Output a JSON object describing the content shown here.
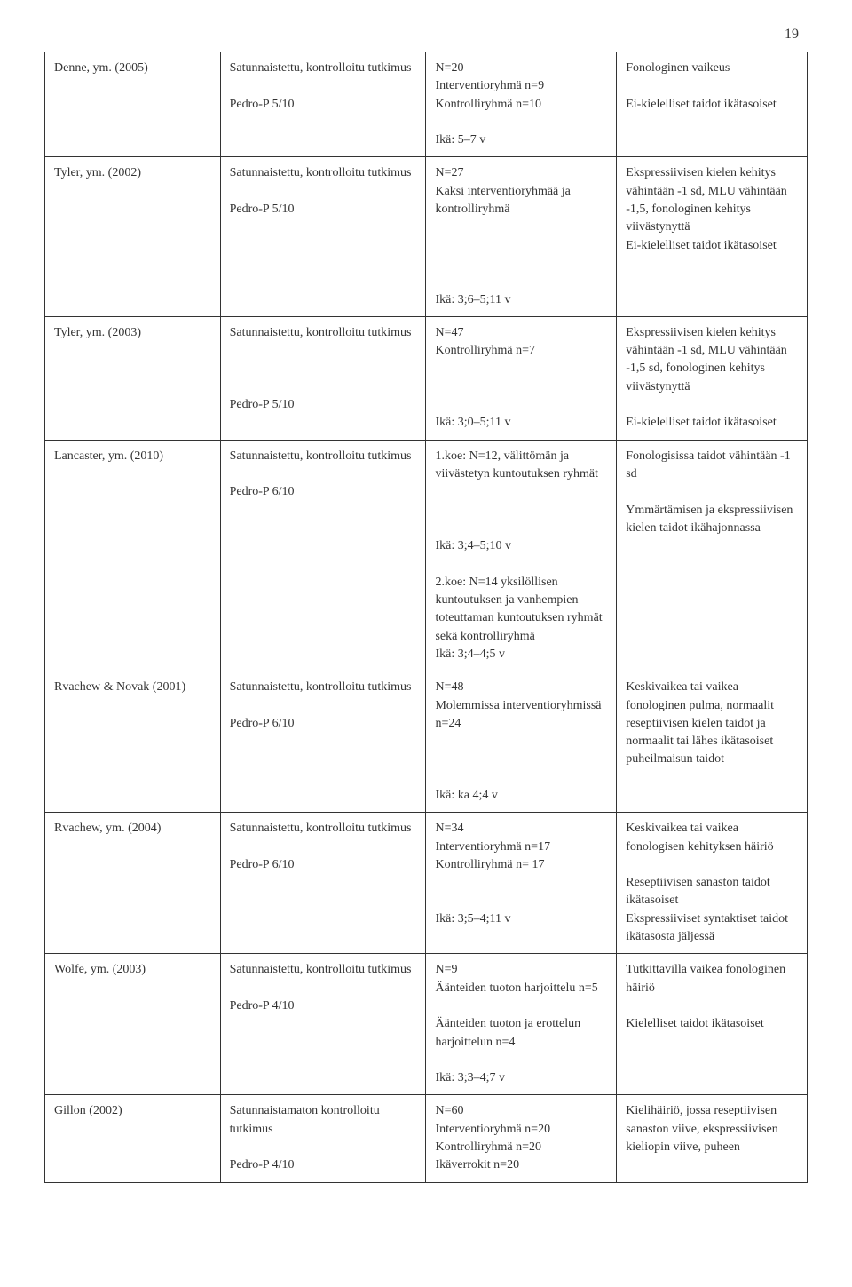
{
  "page_number": "19",
  "table": {
    "text_color": "#333333",
    "border_color": "#333333",
    "background_color": "#ffffff",
    "font_family": "Georgia serif",
    "font_size_pt": 11,
    "rows": [
      {
        "study": "Denne, ym. (2005)",
        "design": "Satunnaistettu, kontrolloitu tutkimus\n\nPedro-P 5/10",
        "sample": "N=20\nInterventioryhmä n=9\nKontrolliryhmä n=10\n\nIkä: 5–7 v",
        "criteria": "Fonologinen vaikeus\n\nEi-kielelliset taidot ikätasoiset"
      },
      {
        "study": "Tyler, ym. (2002)",
        "design": "Satunnaistettu, kontrolloitu tutkimus\n\nPedro-P 5/10",
        "sample": "N=27\nKaksi interventioryhmää ja kontrolliryhmä\n\n\n\n\nIkä: 3;6–5;11 v",
        "criteria": "Ekspressiivisen kielen kehitys vähintään -1 sd, MLU vähintään -1,5, fonologinen kehitys viivästynyttä\nEi-kielelliset taidot ikätasoiset"
      },
      {
        "study": "Tyler, ym. (2003)",
        "design": "Satunnaistettu, kontrolloitu tutkimus\n\n\n\nPedro-P 5/10",
        "sample": "N=47\nKontrolliryhmä n=7\n\n\n\nIkä: 3;0–5;11 v",
        "criteria": "Ekspressiivisen kielen kehitys vähintään -1 sd, MLU vähintään -1,5 sd, fonologinen kehitys viivästynyttä\n\nEi-kielelliset taidot ikätasoiset"
      },
      {
        "study": "Lancaster, ym. (2010)",
        "design": "Satunnaistettu, kontrolloitu tutkimus\n\nPedro-P 6/10",
        "sample": "1.koe: N=12, välittömän ja viivästetyn kuntoutuksen ryhmät\n\n\n\nIkä: 3;4–5;10 v\n\n2.koe: N=14 yksilöllisen kuntoutuksen ja vanhempien toteuttaman kuntoutuksen ryhmät sekä kontrolliryhmä\nIkä: 3;4–4;5 v",
        "criteria": "Fonologisissa taidot vähintään -1 sd\n\nYmmärtämisen ja ekspressiivisen kielen taidot ikähajonnassa"
      },
      {
        "study": "Rvachew & Novak (2001)",
        "design": "Satunnaistettu, kontrolloitu tutkimus\n\nPedro-P 6/10",
        "sample": "N=48\nMolemmissa interventioryhmissä n=24\n\n\n\nIkä: ka 4;4 v",
        "criteria": "Keskivaikea tai vaikea fonologinen pulma, normaalit reseptiivisen kielen taidot ja normaalit tai lähes ikätasoiset puheilmaisun taidot"
      },
      {
        "study": "Rvachew, ym. (2004)",
        "design": "Satunnaistettu, kontrolloitu tutkimus\n\nPedro-P 6/10",
        "sample": "N=34\nInterventioryhmä n=17\nKontrolliryhmä n= 17\n\n\nIkä: 3;5–4;11 v",
        "criteria": "Keskivaikea tai vaikea fonologisen kehityksen häiriö\n\nReseptiivisen sanaston taidot ikätasoiset\nEkspressiiviset syntaktiset taidot ikätasosta jäljessä"
      },
      {
        "study": "Wolfe, ym. (2003)",
        "design": "Satunnaistettu, kontrolloitu tutkimus\n\nPedro-P 4/10",
        "sample": "N=9\nÄänteiden tuoton harjoittelu n=5\n\nÄänteiden tuoton ja erottelun harjoittelun n=4\n\nIkä: 3;3–4;7 v",
        "criteria": "Tutkittavilla vaikea fonologinen häiriö\n\nKielelliset taidot ikätasoiset"
      },
      {
        "study": "Gillon (2002)",
        "design": "Satunnaistamaton kontrolloitu tutkimus\n\nPedro-P 4/10",
        "sample": "N=60\nInterventioryhmä n=20\nKontrolliryhmä n=20\nIkäverrokit n=20",
        "criteria": "Kielihäiriö, jossa reseptiivisen sanaston viive, ekspressiivisen kieliopin viive, puheen"
      }
    ]
  }
}
